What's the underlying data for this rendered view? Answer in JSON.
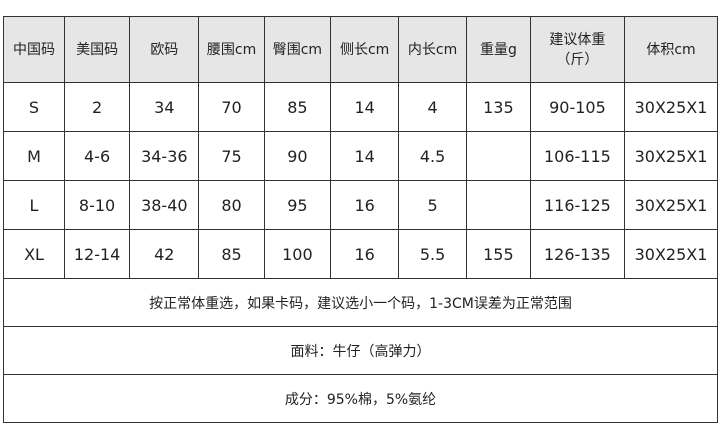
{
  "headers": [
    "中国码",
    "美国码",
    "欧码",
    "腰围cm",
    "臀围cm",
    "侧长cm",
    "内长cm",
    "重量g",
    "建议体重",
    "体积cm"
  ],
  "header_sub": {
    "8": "（斤）"
  },
  "rows": [
    [
      "S",
      "2",
      "34",
      "70",
      "85",
      "14",
      "4",
      "135",
      "90-105",
      "30X25X1"
    ],
    [
      "M",
      "4-6",
      "34-36",
      "75",
      "90",
      "14",
      "4.5",
      "",
      "106-115",
      "30X25X1"
    ],
    [
      "L",
      "8-10",
      "38-40",
      "80",
      "95",
      "16",
      "5",
      "",
      "116-125",
      "30X25X1"
    ],
    [
      "XL",
      "12-14",
      "42",
      "85",
      "100",
      "16",
      "5.5",
      "155",
      "126-135",
      "30X25X1"
    ]
  ],
  "notes": [
    "按正常体重选，如果卡码，建议选小一个码，1-3CM误差为正常范围",
    "面料：牛仔（高弹力）",
    "成分：95%棉，5%氨纶"
  ],
  "colors": {
    "header_bg": "#e6e6e6",
    "border": "#333333"
  }
}
